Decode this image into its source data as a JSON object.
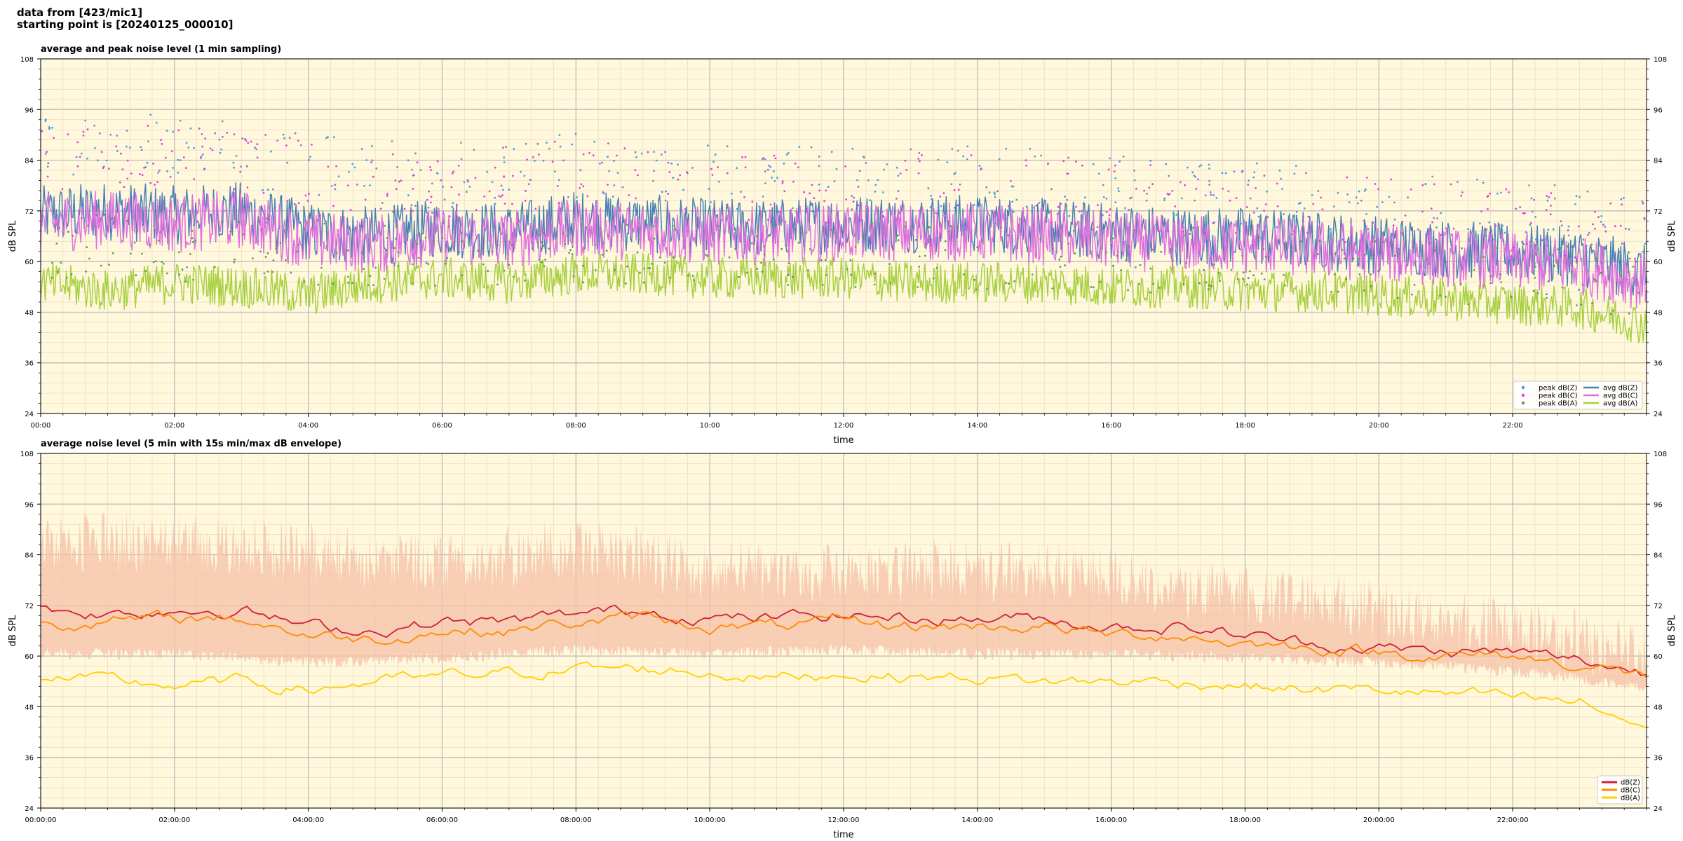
{
  "header": {
    "line1": "data from [423/mic1]",
    "line2": "starting point is [20240125_000010]"
  },
  "chart_data": [
    {
      "type": "line",
      "title": "average and peak noise level (1 min sampling)",
      "xlabel": "time",
      "ylabel": "dB SPL",
      "ylim": [
        24,
        108
      ],
      "yticks": [
        24,
        36,
        48,
        60,
        72,
        84,
        96,
        108
      ],
      "xlim_hours": [
        0,
        24
      ],
      "xtick_labels": [
        "00:00",
        "02:00",
        "04:00",
        "06:00",
        "08:00",
        "10:00",
        "12:00",
        "14:00",
        "16:00",
        "18:00",
        "20:00",
        "22:00"
      ],
      "grid": true,
      "background": "#fff8dc",
      "legend_position": "lower-right",
      "legend": [
        {
          "label": "peak dB(Z)",
          "kind": "dot",
          "color": "#4a9edf"
        },
        {
          "label": "peak dB(C)",
          "kind": "dot",
          "color": "#e040e0"
        },
        {
          "label": "peak dB(A)",
          "kind": "dot",
          "color": "#5a9a5a"
        },
        {
          "label": "avg dB(Z)",
          "kind": "line",
          "color": "#4a7fb5"
        },
        {
          "label": "avg dB(C)",
          "kind": "line",
          "color": "#e070e0"
        },
        {
          "label": "avg dB(A)",
          "kind": "line",
          "color": "#a8d040"
        }
      ],
      "series": [
        {
          "name": "avg dB(Z)",
          "color": "#4a7fb5",
          "x_hours": [
            0,
            1,
            2,
            3,
            4,
            5,
            6,
            7,
            8,
            9,
            10,
            11,
            12,
            13,
            14,
            15,
            16,
            17,
            18,
            19,
            20,
            21,
            22,
            23,
            24
          ],
          "values": [
            71,
            72,
            71,
            72,
            67,
            66,
            68,
            67,
            70,
            69,
            68,
            68,
            69,
            69,
            69,
            68,
            67,
            66,
            66,
            65,
            64,
            63,
            62,
            61,
            57
          ]
        },
        {
          "name": "avg dB(C)",
          "color": "#e070e0",
          "x_hours": [
            0,
            1,
            2,
            3,
            4,
            5,
            6,
            7,
            8,
            9,
            10,
            11,
            12,
            13,
            14,
            15,
            16,
            17,
            18,
            19,
            20,
            21,
            22,
            23,
            24
          ],
          "values": [
            69,
            70,
            69,
            70,
            65,
            64,
            66,
            65,
            68,
            67,
            66,
            66,
            67,
            67,
            67,
            66,
            65,
            64,
            64,
            63,
            62,
            61,
            60,
            59,
            55
          ]
        },
        {
          "name": "avg dB(A)",
          "color": "#a8d040",
          "x_hours": [
            0,
            1,
            2,
            3,
            4,
            5,
            6,
            7,
            8,
            9,
            10,
            11,
            12,
            13,
            14,
            15,
            16,
            17,
            18,
            19,
            20,
            21,
            22,
            23,
            24
          ],
          "values": [
            55,
            53,
            55,
            54,
            52,
            55,
            56,
            55,
            57,
            57,
            56,
            56,
            56,
            55,
            55,
            55,
            54,
            54,
            53,
            53,
            52,
            51,
            50,
            49,
            45
          ]
        },
        {
          "name": "peak dB(Z)",
          "color": "#4a9edf",
          "x_hours": [
            0,
            2,
            4,
            6,
            8,
            10,
            12,
            14,
            16,
            18,
            20,
            22,
            24
          ],
          "values": [
            86,
            87,
            83,
            80,
            83,
            80,
            79,
            80,
            78,
            76,
            74,
            72,
            68
          ]
        },
        {
          "name": "peak dB(C)",
          "color": "#e040e0",
          "x_hours": [
            0,
            2,
            4,
            6,
            8,
            10,
            12,
            14,
            16,
            18,
            20,
            22,
            24
          ],
          "values": [
            84,
            85,
            81,
            78,
            81,
            78,
            77,
            78,
            76,
            74,
            72,
            70,
            66
          ]
        },
        {
          "name": "peak dB(A)",
          "color": "#5a9a5a",
          "x_hours": [
            0,
            2,
            4,
            6,
            8,
            10,
            12,
            14,
            16,
            18,
            20,
            22,
            24
          ],
          "values": [
            64,
            63,
            62,
            62,
            63,
            62,
            62,
            61,
            61,
            60,
            59,
            57,
            54
          ]
        }
      ]
    },
    {
      "type": "line",
      "title": "average noise level (5 min with 15s min/max dB envelope)",
      "xlabel": "time",
      "ylabel": "dB SPL",
      "ylim": [
        24,
        108
      ],
      "yticks": [
        24,
        36,
        48,
        60,
        72,
        84,
        96,
        108
      ],
      "xlim_hours": [
        0,
        24
      ],
      "xtick_labels": [
        "00:00:00",
        "02:00:00",
        "04:00:00",
        "06:00:00",
        "08:00:00",
        "10:00:00",
        "12:00:00",
        "14:00:00",
        "16:00:00",
        "18:00:00",
        "20:00:00",
        "22:00:00"
      ],
      "grid": true,
      "background": "#fff8dc",
      "legend_position": "lower-right",
      "legend": [
        {
          "label": "dB(Z)",
          "kind": "line",
          "color": "#d0203a"
        },
        {
          "label": "dB(C)",
          "kind": "line",
          "color": "#ff8c00"
        },
        {
          "label": "dB(A)",
          "kind": "line",
          "color": "#ffd000"
        }
      ],
      "envelope": {
        "color": "#f5c0a8",
        "x_hours": [
          0,
          2,
          4,
          6,
          8,
          10,
          12,
          14,
          16,
          18,
          20,
          22,
          24
        ],
        "min": [
          62,
          62,
          60,
          61,
          63,
          62,
          63,
          62,
          62,
          61,
          60,
          58,
          54
        ],
        "max": [
          92,
          93,
          90,
          87,
          91,
          86,
          85,
          86,
          84,
          80,
          76,
          72,
          66
        ]
      },
      "series": [
        {
          "name": "dB(Z)",
          "color": "#d0203a",
          "x_hours": [
            0,
            1,
            2,
            3,
            4,
            5,
            6,
            7,
            8,
            9,
            10,
            11,
            12,
            13,
            14,
            15,
            16,
            17,
            18,
            19,
            20,
            21,
            22,
            23,
            24
          ],
          "values": [
            71,
            70,
            71,
            71,
            67,
            66,
            68,
            68,
            70,
            71,
            69,
            69,
            70,
            69,
            69,
            69,
            67,
            67,
            65,
            63,
            62,
            61,
            61,
            59,
            56
          ]
        },
        {
          "name": "dB(C)",
          "color": "#ff8c00",
          "x_hours": [
            0,
            1,
            2,
            3,
            4,
            5,
            6,
            7,
            8,
            9,
            10,
            11,
            12,
            13,
            14,
            15,
            16,
            17,
            18,
            19,
            20,
            21,
            22,
            23,
            24
          ],
          "values": [
            68,
            68,
            69,
            69,
            65,
            64,
            66,
            66,
            68,
            69,
            67,
            67,
            68,
            67,
            67,
            67,
            65,
            65,
            63,
            62,
            61,
            60,
            60,
            58,
            55
          ]
        },
        {
          "name": "dB(A)",
          "color": "#ffd000",
          "x_hours": [
            0,
            1,
            2,
            3,
            4,
            5,
            6,
            7,
            8,
            9,
            10,
            11,
            12,
            13,
            14,
            15,
            16,
            17,
            18,
            19,
            20,
            21,
            22,
            23,
            24
          ],
          "values": [
            55,
            54,
            53,
            54,
            52,
            54,
            55,
            56,
            57,
            57,
            56,
            55,
            56,
            55,
            55,
            54,
            54,
            54,
            53,
            52,
            52,
            51,
            50,
            49,
            43
          ]
        }
      ]
    }
  ]
}
